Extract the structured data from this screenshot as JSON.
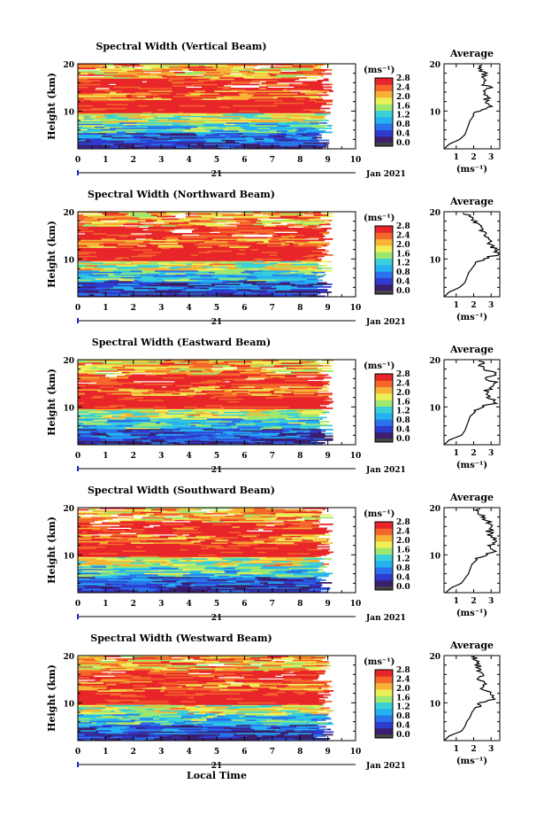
{
  "colors": {
    "palette": [
      "#3b1f6e",
      "#2f3bd0",
      "#2a73e8",
      "#24b3f0",
      "#3ad0d8",
      "#9ee870",
      "#eef05a",
      "#f6b335",
      "#f4662a",
      "#e8262a"
    ],
    "cb_bottom": "#444444",
    "data_line": "#000000"
  },
  "chart_data": [
    {
      "type": "heatmap",
      "title": "Spectral Width (Vertical Beam)",
      "ylabel": "Height (km)",
      "profile_title": "Average",
      "profile_xticks": [
        "1",
        "2",
        "3"
      ],
      "ylim": [
        2,
        20
      ],
      "xlim": [
        0,
        10
      ],
      "data_end": 9.2
    },
    {
      "type": "heatmap",
      "title": "Spectral Width (Northward Beam)",
      "ylabel": "Height (km)",
      "profile_title": "Average",
      "profile_xticks": [
        "1",
        "2",
        "3"
      ],
      "ylim": [
        2,
        20
      ],
      "xlim": [
        0,
        10
      ],
      "data_end": 9.2
    },
    {
      "type": "heatmap",
      "title": "Spectral Width (Eastward Beam)",
      "ylabel": "Height (km)",
      "profile_title": "Average",
      "profile_xticks": [
        "1",
        "2",
        "3"
      ],
      "ylim": [
        2,
        20
      ],
      "xlim": [
        0,
        10
      ],
      "data_end": 9.2
    },
    {
      "type": "heatmap",
      "title": "Spectral Width (Southward Beam)",
      "ylabel": "Height (km)",
      "profile_title": "Average",
      "profile_xticks": [
        "1",
        "2",
        "3"
      ],
      "ylim": [
        2,
        20
      ],
      "xlim": [
        0,
        10
      ],
      "data_end": 9.2
    },
    {
      "type": "heatmap",
      "title": "Spectral Width (Westward Beam)",
      "ylabel": "Height (km)",
      "profile_title": "Average",
      "profile_xticks": [
        "1",
        "2",
        "3"
      ],
      "ylim": [
        2,
        20
      ],
      "xlim": [
        0,
        10
      ],
      "data_end": 9.2
    }
  ],
  "shared": {
    "xticks": [
      "0",
      "1",
      "2",
      "3",
      "4",
      "5",
      "6",
      "7",
      "8",
      "9",
      "10"
    ],
    "yticks": [
      "10",
      "20"
    ],
    "colorbar_unit": "(ms⁻¹)",
    "colorbar_ticks": [
      "0.0",
      "0.4",
      "0.8",
      "1.2",
      "1.6",
      "2.0",
      "2.4",
      "2.8"
    ],
    "date_day": "21",
    "date_month": "Jan 2021",
    "profile_xlabel": "(ms⁻¹)",
    "xlabel": "Local Time"
  },
  "profile": {
    "heights": [
      2,
      3,
      4,
      5,
      6,
      7,
      8,
      9,
      10,
      11,
      12,
      13,
      14,
      15,
      16,
      17,
      18,
      19,
      20
    ],
    "values": [
      [
        0.3,
        0.6,
        1.2,
        1.5,
        1.6,
        1.7,
        1.8,
        2.0,
        2.3,
        2.9,
        2.6,
        2.8,
        2.7,
        2.9,
        2.5,
        2.7,
        2.6,
        2.4,
        2.5
      ],
      [
        0.3,
        0.6,
        1.2,
        1.5,
        1.6,
        1.7,
        1.9,
        2.1,
        2.6,
        3.4,
        3.2,
        3.0,
        2.8,
        2.6,
        2.5,
        2.3,
        2.0,
        1.7,
        1.5
      ],
      [
        0.3,
        0.6,
        1.3,
        1.5,
        1.6,
        1.7,
        1.8,
        2.1,
        2.5,
        3.3,
        2.9,
        2.7,
        2.9,
        3.4,
        2.7,
        3.3,
        2.6,
        2.4,
        2.5
      ],
      [
        0.4,
        0.7,
        1.3,
        1.5,
        1.7,
        1.8,
        1.9,
        2.2,
        2.6,
        3.3,
        3.0,
        3.2,
        3.0,
        2.9,
        3.2,
        2.8,
        2.6,
        2.3,
        2.2
      ],
      [
        0.3,
        0.6,
        1.3,
        1.5,
        1.6,
        1.8,
        1.9,
        2.1,
        2.5,
        3.2,
        2.9,
        2.5,
        2.7,
        2.4,
        2.5,
        2.3,
        2.2,
        2.1,
        2.0
      ]
    ]
  }
}
